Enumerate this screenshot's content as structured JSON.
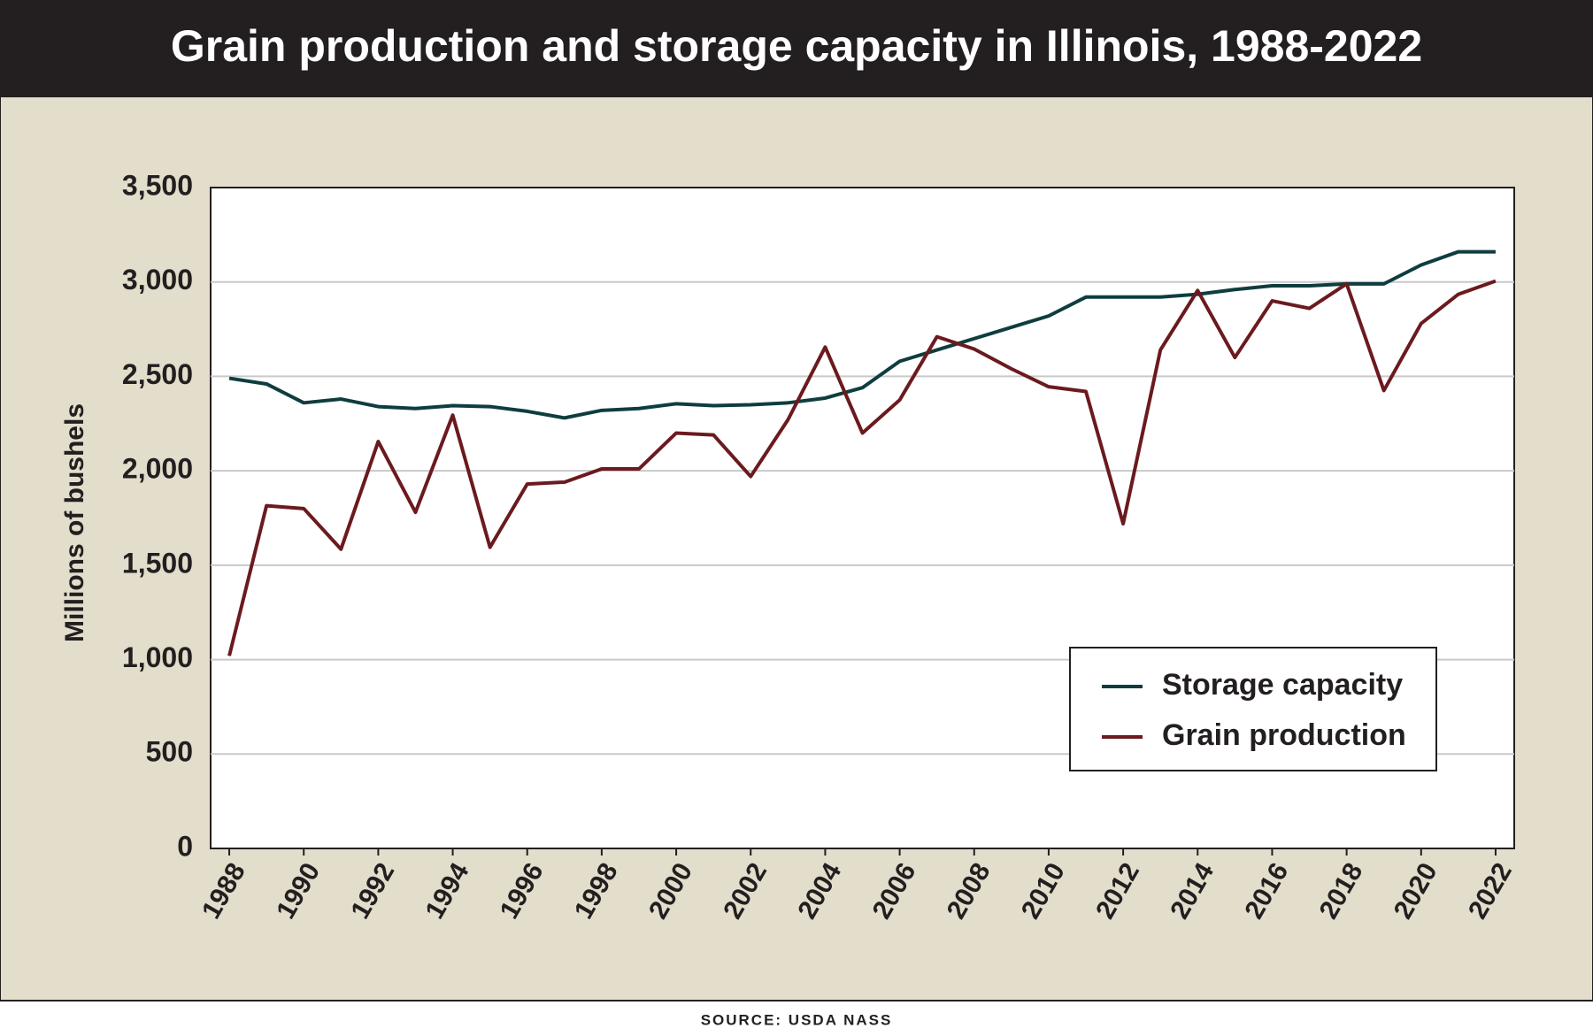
{
  "chart_data": {
    "type": "line",
    "title": "Grain production and storage capacity in Illinois, 1988-2022",
    "y_label": "Millions of bushels",
    "source": "SOURCE: USDA NASS",
    "x": [
      1988,
      1989,
      1990,
      1991,
      1992,
      1993,
      1994,
      1995,
      1996,
      1997,
      1998,
      1999,
      2000,
      2001,
      2002,
      2003,
      2004,
      2005,
      2006,
      2007,
      2008,
      2009,
      2010,
      2011,
      2012,
      2013,
      2014,
      2015,
      2016,
      2017,
      2018,
      2019,
      2020,
      2021,
      2022
    ],
    "series": [
      {
        "name": "Storage capacity",
        "color": "#0f3d3f",
        "values": [
          2490,
          2460,
          2360,
          2380,
          2340,
          2330,
          2345,
          2340,
          2315,
          2280,
          2320,
          2330,
          2355,
          2345,
          2350,
          2360,
          2385,
          2440,
          2580,
          2640,
          2700,
          2760,
          2820,
          2920,
          2920,
          2920,
          2935,
          2960,
          2980,
          2980,
          2990,
          2990,
          3090,
          3160,
          3160
        ]
      },
      {
        "name": "Grain production",
        "color": "#6b1a1e",
        "values": [
          1020,
          1815,
          1800,
          1585,
          2155,
          1780,
          2295,
          1595,
          1930,
          1940,
          2010,
          2010,
          2200,
          2190,
          1970,
          2270,
          2655,
          2200,
          2375,
          2710,
          2645,
          2540,
          2445,
          2420,
          1720,
          2640,
          2955,
          2600,
          2900,
          2860,
          2990,
          2425,
          2780,
          2935,
          3005
        ]
      }
    ],
    "xlim": [
      1987.5,
      2022.5
    ],
    "xticks": [
      1988,
      1990,
      1992,
      1994,
      1996,
      1998,
      2000,
      2002,
      2004,
      2006,
      2008,
      2010,
      2012,
      2014,
      2016,
      2018,
      2020,
      2022
    ],
    "ylim": [
      0,
      3500
    ],
    "yticks": [
      0,
      500,
      {
        "value": 1000,
        "label": "1,000"
      },
      {
        "value": 1500,
        "label": "1,500"
      },
      {
        "value": 2000,
        "label": "2,000"
      },
      {
        "value": 2500,
        "label": "2,500"
      },
      {
        "value": 3000,
        "label": "3,000"
      },
      {
        "value": 3500,
        "label": "3,500"
      }
    ],
    "grid": true,
    "legend": "lower right"
  }
}
